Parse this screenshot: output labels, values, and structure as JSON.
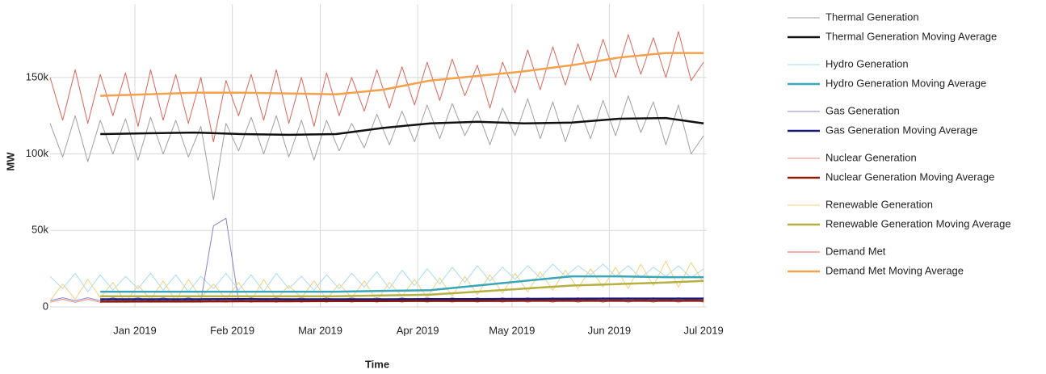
{
  "chart_data": {
    "type": "line",
    "x_label": "Time",
    "y_label": "MW",
    "grid": true,
    "legend": "right",
    "xlim": [
      "2018-12-05",
      "2019-07-02"
    ],
    "xticks": [
      {
        "value": "2019-01",
        "label": "Jan 2019"
      },
      {
        "value": "2019-02",
        "label": "Feb 2019"
      },
      {
        "value": "2019-03",
        "label": "Mar 2019"
      },
      {
        "value": "2019-04",
        "label": "Apr 2019"
      },
      {
        "value": "2019-05",
        "label": "May 2019"
      },
      {
        "value": "2019-06",
        "label": "Jun 2019"
      },
      {
        "value": "2019-07",
        "label": "Jul 2019"
      }
    ],
    "ylim": [
      0,
      198000
    ],
    "yticks": [
      0,
      {
        "value": 50000,
        "label": "50k"
      },
      {
        "value": 100000,
        "label": "100k"
      },
      {
        "value": 150000,
        "label": "150k"
      }
    ],
    "x": [
      "2018-12-05",
      "2018-12-09",
      "2018-12-13",
      "2018-12-17",
      "2018-12-21",
      "2018-12-25",
      "2018-12-29",
      "2019-01-02",
      "2019-01-06",
      "2019-01-10",
      "2019-01-14",
      "2019-01-18",
      "2019-01-22",
      "2019-01-26",
      "2019-01-30",
      "2019-02-03",
      "2019-02-07",
      "2019-02-11",
      "2019-02-15",
      "2019-02-19",
      "2019-02-23",
      "2019-02-27",
      "2019-03-03",
      "2019-03-07",
      "2019-03-11",
      "2019-03-15",
      "2019-03-19",
      "2019-03-23",
      "2019-03-27",
      "2019-03-31",
      "2019-04-04",
      "2019-04-08",
      "2019-04-12",
      "2019-04-16",
      "2019-04-20",
      "2019-04-24",
      "2019-04-28",
      "2019-05-02",
      "2019-05-06",
      "2019-05-10",
      "2019-05-14",
      "2019-05-18",
      "2019-05-22",
      "2019-05-26",
      "2019-05-30",
      "2019-06-03",
      "2019-06-07",
      "2019-06-11",
      "2019-06-15",
      "2019-06-19",
      "2019-06-23",
      "2019-06-27",
      "2019-07-01"
    ],
    "series": [
      {
        "name": "Thermal Generation",
        "color": "#a0a0a0",
        "width": 1,
        "values": [
          120000,
          98000,
          125000,
          95000,
          122000,
          100000,
          123000,
          96000,
          124000,
          100000,
          122000,
          98000,
          118000,
          70000,
          120000,
          102000,
          124000,
          100000,
          125000,
          98000,
          122000,
          96000,
          122000,
          102000,
          120000,
          104000,
          126000,
          106000,
          128000,
          108000,
          132000,
          110000,
          133000,
          112000,
          128000,
          106000,
          130000,
          112000,
          136000,
          110000,
          134000,
          108000,
          132000,
          110000,
          135000,
          112000,
          138000,
          114000,
          134000,
          106000,
          132000,
          100000,
          112000
        ]
      },
      {
        "name": "Thermal Generation Moving Average",
        "color": "#111111",
        "width": 2.5,
        "x": [
          "2018-12-21",
          "2019-01-05",
          "2019-01-20",
          "2019-02-04",
          "2019-02-19",
          "2019-03-06",
          "2019-03-21",
          "2019-04-05",
          "2019-04-20",
          "2019-05-05",
          "2019-05-20",
          "2019-06-04",
          "2019-06-19",
          "2019-07-01"
        ],
        "values": [
          113000,
          113500,
          114000,
          113000,
          112500,
          113000,
          117000,
          120000,
          121000,
          120000,
          120500,
          123000,
          123500,
          120000
        ]
      },
      {
        "name": "Hydro Generation",
        "color": "#a6dcef",
        "width": 1,
        "values": [
          20000,
          12000,
          22000,
          10000,
          21000,
          11000,
          20000,
          12000,
          22000,
          11000,
          21000,
          10000,
          20000,
          12000,
          22000,
          11000,
          21000,
          10000,
          22000,
          12000,
          20000,
          11000,
          21000,
          12000,
          22000,
          13000,
          23000,
          12000,
          24000,
          14000,
          25000,
          15000,
          26000,
          16000,
          27000,
          17000,
          26000,
          18000,
          27000,
          19000,
          28000,
          20000,
          27000,
          21000,
          28000,
          20000,
          27000,
          19000,
          26000,
          20000,
          27000,
          19000,
          25000
        ]
      },
      {
        "name": "Hydro Generation Moving Average",
        "color": "#3aa6b9",
        "width": 2.5,
        "x": [
          "2018-12-21",
          "2019-01-05",
          "2019-01-20",
          "2019-02-04",
          "2019-02-19",
          "2019-03-06",
          "2019-03-21",
          "2019-04-05",
          "2019-04-20",
          "2019-05-05",
          "2019-05-20",
          "2019-06-04",
          "2019-06-19",
          "2019-07-01"
        ],
        "values": [
          10000,
          10000,
          10000,
          10000,
          10000,
          10000,
          10500,
          11000,
          14000,
          17000,
          20000,
          20000,
          19500,
          19500
        ]
      },
      {
        "name": "Gas Generation",
        "color": "#8b80c9",
        "width": 1,
        "values": [
          4000,
          6000,
          4000,
          6000,
          4000,
          6000,
          4000,
          6000,
          4000,
          6000,
          4000,
          6000,
          4000,
          53000,
          58000,
          4000,
          6000,
          4000,
          6000,
          4000,
          6000,
          4000,
          6000,
          4000,
          6000,
          4000,
          6000,
          4000,
          6000,
          4000,
          6000,
          4000,
          6000,
          4000,
          6000,
          4000,
          6000,
          4000,
          6000,
          4000,
          6000,
          4000,
          6000,
          4000,
          6000,
          4000,
          6000,
          4000,
          6000,
          4000,
          6000,
          4000,
          6000
        ]
      },
      {
        "name": "Gas Generation Moving Average",
        "color": "#1a1a7a",
        "width": 2.5,
        "x": [
          "2018-12-21",
          "2019-01-05",
          "2019-01-20",
          "2019-02-04",
          "2019-02-19",
          "2019-03-06",
          "2019-03-21",
          "2019-04-05",
          "2019-04-20",
          "2019-05-05",
          "2019-05-20",
          "2019-06-04",
          "2019-06-19",
          "2019-07-01"
        ],
        "values": [
          5000,
          5000,
          5000,
          5200,
          5000,
          5000,
          5000,
          5100,
          5200,
          5300,
          5400,
          5500,
          5500,
          5500
        ]
      },
      {
        "name": "Nuclear Generation",
        "color": "#e88a7a",
        "width": 1,
        "values": [
          3000,
          5000,
          3000,
          5000,
          3000,
          5000,
          3000,
          5000,
          3000,
          5000,
          3000,
          5000,
          3000,
          5000,
          3000,
          5000,
          3000,
          5000,
          3000,
          5000,
          3000,
          5000,
          3000,
          5000,
          3000,
          5000,
          3000,
          5000,
          3000,
          5000,
          3000,
          5000,
          3000,
          5000,
          3000,
          5000,
          3000,
          5000,
          3000,
          5000,
          3000,
          5000,
          3000,
          5000,
          3000,
          5000,
          3000,
          5000,
          3000,
          5000,
          3000,
          5000,
          3000
        ]
      },
      {
        "name": "Nuclear Generation Moving Average",
        "color": "#8b1a0a",
        "width": 2.5,
        "x": [
          "2018-12-21",
          "2019-01-05",
          "2019-01-20",
          "2019-02-04",
          "2019-02-19",
          "2019-03-06",
          "2019-03-21",
          "2019-04-05",
          "2019-04-20",
          "2019-05-05",
          "2019-05-20",
          "2019-06-04",
          "2019-06-19",
          "2019-07-01"
        ],
        "values": [
          3500,
          3600,
          3600,
          3700,
          3700,
          3800,
          3800,
          3900,
          3900,
          4000,
          4000,
          4000,
          4000,
          4000
        ]
      },
      {
        "name": "Renewable Generation",
        "color": "#f5d07a",
        "width": 1,
        "values": [
          4000,
          15000,
          5000,
          18000,
          6000,
          16000,
          3000,
          14000,
          5000,
          17000,
          4000,
          18000,
          6000,
          15000,
          5000,
          16000,
          4000,
          18000,
          5000,
          14000,
          6000,
          17000,
          5000,
          15000,
          6000,
          17000,
          4000,
          16000,
          7000,
          18000,
          6000,
          19000,
          7000,
          20000,
          8000,
          21000,
          9000,
          22000,
          10000,
          23000,
          11000,
          24000,
          12000,
          25000,
          13000,
          26000,
          12000,
          28000,
          14000,
          30000,
          13000,
          29000,
          16000
        ]
      },
      {
        "name": "Renewable Generation Moving Average",
        "color": "#b5b040",
        "width": 2.5,
        "x": [
          "2018-12-21",
          "2019-01-05",
          "2019-01-20",
          "2019-02-04",
          "2019-02-19",
          "2019-03-06",
          "2019-03-21",
          "2019-04-05",
          "2019-04-20",
          "2019-05-05",
          "2019-05-20",
          "2019-06-04",
          "2019-06-19",
          "2019-07-01"
        ],
        "values": [
          7000,
          7000,
          7000,
          7000,
          7000,
          7000,
          7500,
          8000,
          10000,
          12000,
          14000,
          15000,
          16000,
          17000
        ]
      },
      {
        "name": "Demand Met",
        "color": "#d9665b",
        "width": 1,
        "values": [
          150000,
          122000,
          155000,
          120000,
          152000,
          125000,
          153000,
          118000,
          155000,
          122000,
          152000,
          120000,
          150000,
          108000,
          148000,
          125000,
          152000,
          122000,
          155000,
          120000,
          150000,
          118000,
          153000,
          125000,
          150000,
          128000,
          155000,
          130000,
          157000,
          132000,
          160000,
          135000,
          162000,
          138000,
          158000,
          130000,
          160000,
          140000,
          168000,
          142000,
          170000,
          145000,
          172000,
          148000,
          175000,
          150000,
          178000,
          152000,
          176000,
          150000,
          180000,
          148000,
          160000
        ]
      },
      {
        "name": "Demand Met Moving Average",
        "color": "#f5a04a",
        "width": 2.5,
        "x": [
          "2018-12-21",
          "2019-01-05",
          "2019-01-20",
          "2019-02-04",
          "2019-02-19",
          "2019-03-06",
          "2019-03-21",
          "2019-04-05",
          "2019-04-20",
          "2019-05-05",
          "2019-05-20",
          "2019-06-04",
          "2019-06-19",
          "2019-07-01"
        ],
        "values": [
          138000,
          139000,
          140000,
          140000,
          139500,
          139000,
          142000,
          148000,
          151000,
          154000,
          158000,
          163000,
          166000,
          166000
        ]
      }
    ]
  }
}
